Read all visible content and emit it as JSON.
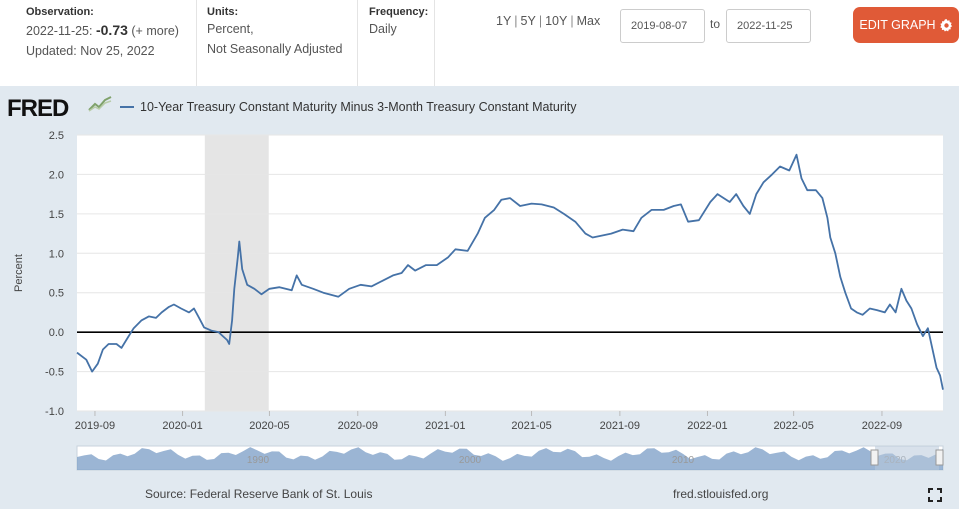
{
  "header": {
    "observation_label": "Observation:",
    "observation_date": "2022-11-25:",
    "observation_value": "-0.73",
    "observation_more": "(+ more)",
    "updated": "Updated: Nov 25, 2022",
    "units_label": "Units:",
    "units_line1": "Percent,",
    "units_line2": "Not Seasonally Adjusted",
    "frequency_label": "Frequency:",
    "frequency_value": "Daily",
    "ranges": [
      "1Y",
      "5Y",
      "10Y",
      "Max"
    ],
    "date_start": "2019-08-07",
    "date_to": "to",
    "date_end": "2022-11-25",
    "edit_button": "EDIT GRAPH"
  },
  "logo_text": "FRED",
  "footer": {
    "source": "Source: Federal Reserve Bank of St. Louis",
    "url": "fred.stlouisfed.org"
  },
  "colors": {
    "series": "#4572a7",
    "accent": "#e05a37",
    "panel": "#e1e9f0",
    "recession": "#e5e5e5"
  },
  "chart_data": {
    "type": "line",
    "title": "10-Year Treasury Constant Maturity Minus 3-Month Treasury Constant Maturity",
    "xlabel": "",
    "ylabel": "Percent",
    "xlim": [
      "2019-08-07",
      "2022-11-25"
    ],
    "ylim": [
      -1.0,
      2.5
    ],
    "yticks": [
      -1.0,
      -0.5,
      0.0,
      0.5,
      1.0,
      1.5,
      2.0,
      2.5
    ],
    "xtick_labels": [
      "2019-09",
      "2020-01",
      "2020-05",
      "2020-09",
      "2021-01",
      "2021-05",
      "2021-09",
      "2022-01",
      "2022-05",
      "2022-09"
    ],
    "xtick_dates": [
      "2019-09-01",
      "2020-01-01",
      "2020-05-01",
      "2020-09-01",
      "2021-01-01",
      "2021-05-01",
      "2021-09-01",
      "2022-01-01",
      "2022-05-01",
      "2022-09-01"
    ],
    "reference_line": 0,
    "recession": [
      "2020-02-01",
      "2020-04-30"
    ],
    "navigator_labels": [
      "1990",
      "2000",
      "2010",
      "2020"
    ],
    "series": [
      {
        "name": "10-Year Treasury Constant Maturity Minus 3-Month Treasury Constant Maturity",
        "points": [
          [
            "2019-08-07",
            -0.26
          ],
          [
            "2019-08-20",
            -0.35
          ],
          [
            "2019-08-28",
            -0.5
          ],
          [
            "2019-09-05",
            -0.4
          ],
          [
            "2019-09-12",
            -0.22
          ],
          [
            "2019-09-20",
            -0.15
          ],
          [
            "2019-10-01",
            -0.15
          ],
          [
            "2019-10-08",
            -0.2
          ],
          [
            "2019-10-18",
            -0.05
          ],
          [
            "2019-10-25",
            0.05
          ],
          [
            "2019-11-05",
            0.15
          ],
          [
            "2019-11-15",
            0.2
          ],
          [
            "2019-11-25",
            0.18
          ],
          [
            "2019-12-03",
            0.25
          ],
          [
            "2019-12-13",
            0.32
          ],
          [
            "2019-12-20",
            0.35
          ],
          [
            "2019-12-30",
            0.3
          ],
          [
            "2020-01-10",
            0.25
          ],
          [
            "2020-01-17",
            0.3
          ],
          [
            "2020-01-24",
            0.18
          ],
          [
            "2020-01-31",
            0.06
          ],
          [
            "2020-02-10",
            0.02
          ],
          [
            "2020-02-20",
            0.0
          ],
          [
            "2020-02-26",
            -0.05
          ],
          [
            "2020-03-03",
            -0.1
          ],
          [
            "2020-03-06",
            -0.15
          ],
          [
            "2020-03-10",
            0.15
          ],
          [
            "2020-03-13",
            0.55
          ],
          [
            "2020-03-18",
            0.95
          ],
          [
            "2020-03-20",
            1.15
          ],
          [
            "2020-03-24",
            0.8
          ],
          [
            "2020-03-31",
            0.6
          ],
          [
            "2020-04-10",
            0.55
          ],
          [
            "2020-04-20",
            0.48
          ],
          [
            "2020-05-01",
            0.55
          ],
          [
            "2020-05-15",
            0.57
          ],
          [
            "2020-06-01",
            0.53
          ],
          [
            "2020-06-08",
            0.72
          ],
          [
            "2020-06-15",
            0.6
          ],
          [
            "2020-07-01",
            0.55
          ],
          [
            "2020-07-15",
            0.5
          ],
          [
            "2020-08-05",
            0.45
          ],
          [
            "2020-08-20",
            0.55
          ],
          [
            "2020-09-05",
            0.6
          ],
          [
            "2020-09-20",
            0.58
          ],
          [
            "2020-10-05",
            0.65
          ],
          [
            "2020-10-20",
            0.72
          ],
          [
            "2020-11-01",
            0.75
          ],
          [
            "2020-11-10",
            0.85
          ],
          [
            "2020-11-20",
            0.78
          ],
          [
            "2020-12-05",
            0.85
          ],
          [
            "2020-12-20",
            0.85
          ],
          [
            "2021-01-05",
            0.95
          ],
          [
            "2021-01-15",
            1.05
          ],
          [
            "2021-02-01",
            1.03
          ],
          [
            "2021-02-15",
            1.25
          ],
          [
            "2021-02-25",
            1.45
          ],
          [
            "2021-03-10",
            1.55
          ],
          [
            "2021-03-20",
            1.68
          ],
          [
            "2021-04-01",
            1.7
          ],
          [
            "2021-04-15",
            1.6
          ],
          [
            "2021-05-01",
            1.63
          ],
          [
            "2021-05-15",
            1.62
          ],
          [
            "2021-06-01",
            1.58
          ],
          [
            "2021-06-15",
            1.5
          ],
          [
            "2021-07-01",
            1.4
          ],
          [
            "2021-07-15",
            1.25
          ],
          [
            "2021-07-25",
            1.2
          ],
          [
            "2021-08-05",
            1.22
          ],
          [
            "2021-08-20",
            1.25
          ],
          [
            "2021-09-05",
            1.3
          ],
          [
            "2021-09-20",
            1.28
          ],
          [
            "2021-10-01",
            1.45
          ],
          [
            "2021-10-15",
            1.55
          ],
          [
            "2021-11-01",
            1.55
          ],
          [
            "2021-11-15",
            1.6
          ],
          [
            "2021-11-25",
            1.62
          ],
          [
            "2021-12-05",
            1.4
          ],
          [
            "2021-12-20",
            1.42
          ],
          [
            "2022-01-05",
            1.65
          ],
          [
            "2022-01-15",
            1.75
          ],
          [
            "2022-02-01",
            1.65
          ],
          [
            "2022-02-10",
            1.75
          ],
          [
            "2022-02-20",
            1.6
          ],
          [
            "2022-03-01",
            1.5
          ],
          [
            "2022-03-10",
            1.75
          ],
          [
            "2022-03-20",
            1.9
          ],
          [
            "2022-04-01",
            2.0
          ],
          [
            "2022-04-12",
            2.1
          ],
          [
            "2022-04-25",
            2.05
          ],
          [
            "2022-05-05",
            2.25
          ],
          [
            "2022-05-12",
            1.95
          ],
          [
            "2022-05-20",
            1.8
          ],
          [
            "2022-06-01",
            1.8
          ],
          [
            "2022-06-10",
            1.7
          ],
          [
            "2022-06-17",
            1.45
          ],
          [
            "2022-06-21",
            1.2
          ],
          [
            "2022-06-28",
            1.0
          ],
          [
            "2022-07-05",
            0.7
          ],
          [
            "2022-07-12",
            0.5
          ],
          [
            "2022-07-20",
            0.3
          ],
          [
            "2022-07-28",
            0.25
          ],
          [
            "2022-08-05",
            0.22
          ],
          [
            "2022-08-15",
            0.3
          ],
          [
            "2022-08-25",
            0.28
          ],
          [
            "2022-09-05",
            0.25
          ],
          [
            "2022-09-12",
            0.35
          ],
          [
            "2022-09-20",
            0.25
          ],
          [
            "2022-09-28",
            0.55
          ],
          [
            "2022-10-05",
            0.4
          ],
          [
            "2022-10-12",
            0.3
          ],
          [
            "2022-10-20",
            0.1
          ],
          [
            "2022-10-28",
            -0.05
          ],
          [
            "2022-11-04",
            0.05
          ],
          [
            "2022-11-10",
            -0.2
          ],
          [
            "2022-11-16",
            -0.45
          ],
          [
            "2022-11-21",
            -0.55
          ],
          [
            "2022-11-25",
            -0.73
          ]
        ]
      }
    ]
  }
}
